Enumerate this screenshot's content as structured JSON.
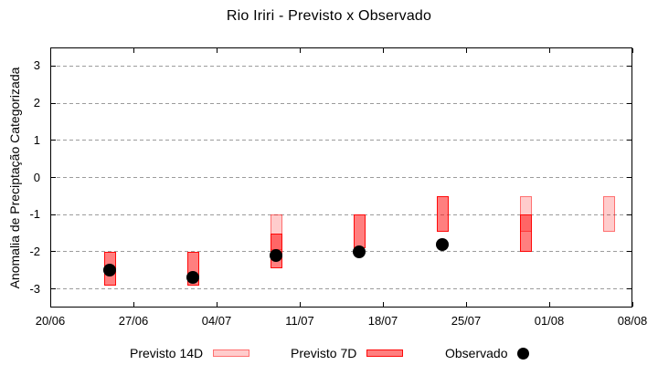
{
  "chart_data": {
    "type": "bar",
    "title": "Rio Iriri - Previsto x Observado",
    "xlabel": "",
    "ylabel": "Anomalia de Preciptação Categorizada",
    "ylim": [
      -3.5,
      3.5
    ],
    "grid": "horizontal-dotted",
    "legend_position": "bottom",
    "x_ticks": [
      {
        "label": "20/06",
        "day": 0
      },
      {
        "label": "27/06",
        "day": 7
      },
      {
        "label": "04/07",
        "day": 14
      },
      {
        "label": "11/07",
        "day": 21
      },
      {
        "label": "18/07",
        "day": 28
      },
      {
        "label": "25/07",
        "day": 35
      },
      {
        "label": "01/08",
        "day": 42
      },
      {
        "label": "08/08",
        "day": 49
      }
    ],
    "y_ticks": [
      3,
      2,
      1,
      0,
      -1,
      -2,
      -3
    ],
    "series": [
      {
        "name": "Previsto 14D",
        "type": "range-bar",
        "fill": "rgba(255,0,0,0.20)",
        "border": "rgba(255,0,0,0.45)",
        "points": [
          {
            "date": "09/07",
            "day": 19,
            "top": -1.0,
            "bottom": -1.95
          },
          {
            "date": "30/07",
            "day": 40,
            "top": -0.5,
            "bottom": -1.45
          },
          {
            "date": "06/08",
            "day": 47,
            "top": -0.5,
            "bottom": -1.45
          }
        ]
      },
      {
        "name": "Previsto 7D",
        "type": "range-bar",
        "fill": "rgba(255,0,0,0.50)",
        "border": "rgba(255,0,0,0.92)",
        "points": [
          {
            "date": "25/06",
            "day": 5,
            "top": -2.0,
            "bottom": -2.9
          },
          {
            "date": "02/07",
            "day": 12,
            "top": -2.0,
            "bottom": -2.9
          },
          {
            "date": "09/07",
            "day": 19,
            "top": -1.5,
            "bottom": -2.45
          },
          {
            "date": "16/07",
            "day": 26,
            "top": -1.0,
            "bottom": -1.9
          },
          {
            "date": "23/07",
            "day": 33,
            "top": -0.5,
            "bottom": -1.45
          },
          {
            "date": "30/07",
            "day": 40,
            "top": -1.0,
            "bottom": -2.0
          }
        ]
      },
      {
        "name": "Observado",
        "type": "scatter",
        "color": "#000000",
        "points": [
          {
            "date": "25/06",
            "day": 5,
            "value": -2.5
          },
          {
            "date": "02/07",
            "day": 12,
            "value": -2.7
          },
          {
            "date": "09/07",
            "day": 19,
            "value": -2.1
          },
          {
            "date": "16/07",
            "day": 26,
            "value": -2.0
          },
          {
            "date": "23/07",
            "day": 33,
            "value": -1.8
          }
        ]
      }
    ]
  },
  "colors": {
    "background": "#ffffff",
    "axis": "#000000",
    "grid": "#9c9c9c",
    "previsto_14d_fill": "#fccfc9",
    "previsto_14d_border": "#f58d82",
    "previsto_7d_fill": "#fb837a",
    "previsto_7d_border": "#fe1408",
    "overlap_fill": "#f5564c",
    "observado": "#000000"
  }
}
